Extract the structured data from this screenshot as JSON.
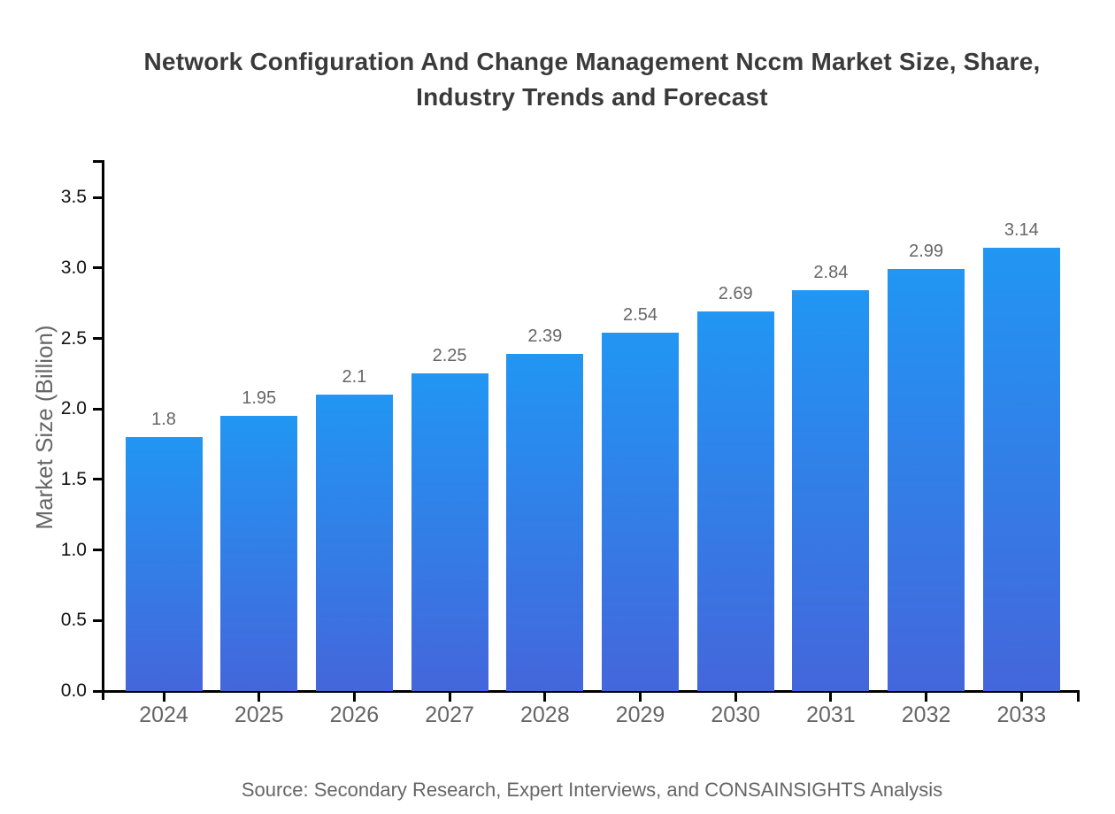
{
  "title": {
    "line1": "Network Configuration And Change Management Nccm Market Size, Share,",
    "line2": "Industry Trends and Forecast"
  },
  "source": "Source: Secondary Research, Expert Interviews, and CONSAINSIGHTS Analysis",
  "chart_data": {
    "type": "bar",
    "title": "Network Configuration And Change Management Nccm Market Size, Share, Industry Trends and Forecast",
    "categories": [
      "2024",
      "2025",
      "2026",
      "2027",
      "2028",
      "2029",
      "2030",
      "2031",
      "2032",
      "2033"
    ],
    "values": [
      1.8,
      1.95,
      2.1,
      2.25,
      2.39,
      2.54,
      2.69,
      2.84,
      2.99,
      3.14
    ],
    "value_labels": [
      "1.8",
      "1.95",
      "2.1",
      "2.25",
      "2.39",
      "2.54",
      "2.69",
      "2.84",
      "2.99",
      "3.14"
    ],
    "xlabel": "",
    "ylabel": "Market Size (Billion)",
    "ylim": [
      0,
      3.5
    ],
    "ytick_labels": [
      "0.0",
      "0.5",
      "1.0",
      "1.5",
      "2.0",
      "2.5",
      "3.0",
      "3.5"
    ],
    "grid": false,
    "legend": false,
    "colors": {
      "bar_gradient_top": "#2196f3",
      "bar_gradient_bottom": "#4466db",
      "axis": "#000000",
      "title_text": "#3a3a3a",
      "tick_label": "#111111",
      "muted_label": "#666666"
    }
  }
}
